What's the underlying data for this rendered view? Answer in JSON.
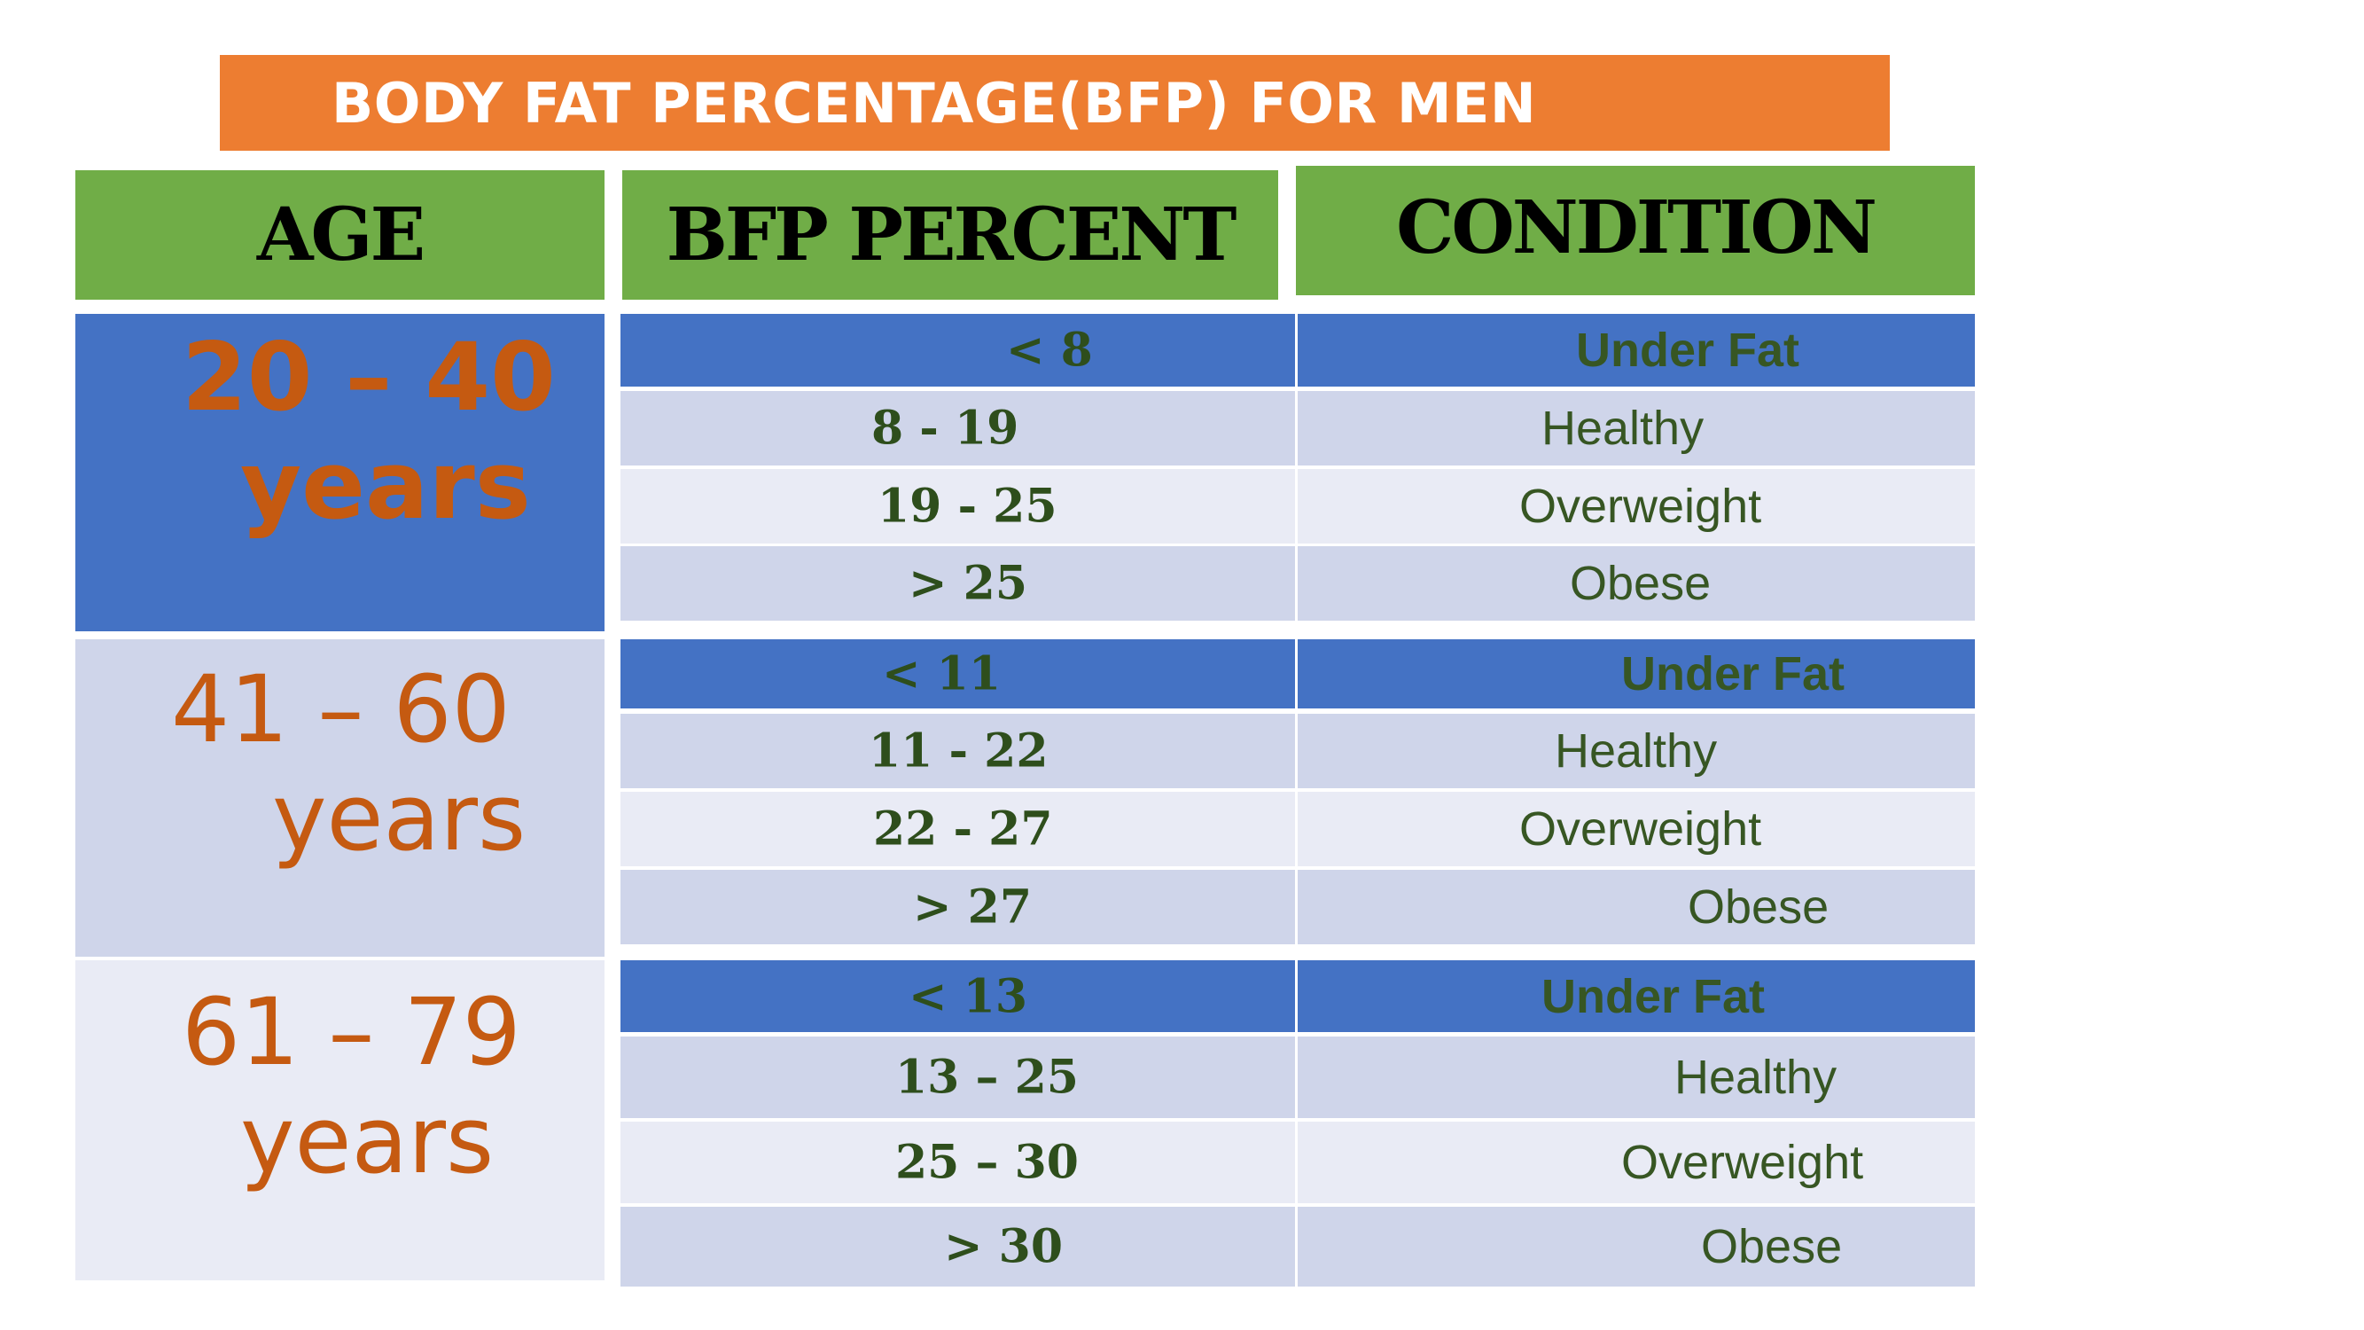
{
  "title": "BODY FAT PERCENTAGE(BFP) FOR MEN",
  "headers": {
    "age": "AGE",
    "bfp": "BFP PERCENT",
    "condition": "CONDITION"
  },
  "groups": [
    {
      "age_range": "20 – 40",
      "age_unit": "years",
      "rows": [
        {
          "bfp": "< 8",
          "condition": "Under Fat"
        },
        {
          "bfp": "8 - 19",
          "condition": "Healthy"
        },
        {
          "bfp": "19 - 25",
          "condition": "Overweight"
        },
        {
          "bfp": "> 25",
          "condition": "Obese"
        }
      ]
    },
    {
      "age_range": "41 – 60",
      "age_unit": "years",
      "rows": [
        {
          "bfp": "< 11",
          "condition": "Under Fat"
        },
        {
          "bfp": "11 - 22",
          "condition": "Healthy"
        },
        {
          "bfp": "22 - 27",
          "condition": "Overweight"
        },
        {
          "bfp": "> 27",
          "condition": "Obese"
        }
      ]
    },
    {
      "age_range": "61 – 79",
      "age_unit": "years",
      "rows": [
        {
          "bfp": "< 13",
          "condition": "Under Fat"
        },
        {
          "bfp": "13 – 25",
          "condition": "Healthy"
        },
        {
          "bfp": "25 – 30",
          "condition": "Overweight"
        },
        {
          "bfp": "> 30",
          "condition": "Obese"
        }
      ]
    }
  ],
  "colors": {
    "banner": "#ed7d31",
    "header": "#70ad47",
    "blue": "#4472c4",
    "row_dark": "#cfd5ea",
    "row_light": "#e9ebf5",
    "age_text": "#c55a11",
    "cell_text": "#375623"
  }
}
